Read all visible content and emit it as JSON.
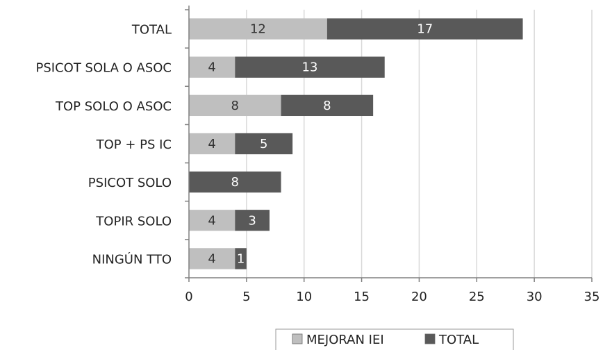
{
  "chart_data": {
    "type": "bar",
    "orientation": "horizontal",
    "stacked": true,
    "categories": [
      "TOTAL",
      "PSICOT SOLA O ASOC",
      "TOP SOLO O ASOC",
      "TOP + PS IC",
      "PSICOT SOLO",
      "TOPIR SOLO",
      "NINGÚN TTO"
    ],
    "series": [
      {
        "name": "MEJORAN IEI",
        "values": [
          12,
          4,
          8,
          4,
          0,
          4,
          4
        ],
        "color": "#bfbfbf",
        "label_color": "#333333"
      },
      {
        "name": "TOTAL",
        "values": [
          17,
          13,
          8,
          5,
          8,
          3,
          1
        ],
        "color": "#595959",
        "label_color": "#ffffff"
      }
    ],
    "data_labels": [
      [
        "12",
        "4",
        "8",
        "4",
        "",
        "4",
        "4"
      ],
      [
        "17",
        "13",
        "8",
        "5",
        "8",
        "3",
        "1"
      ]
    ],
    "xlim": [
      0,
      35
    ],
    "xticks": [
      0,
      5,
      10,
      15,
      20,
      25,
      30,
      35
    ],
    "xtick_labels": [
      "0",
      "5",
      "10",
      "15",
      "20",
      "25",
      "30",
      "35"
    ],
    "grid": "vertical",
    "grid_color": "#d9d9d9",
    "axis_color": "#808080",
    "legend_position": "bottom"
  }
}
